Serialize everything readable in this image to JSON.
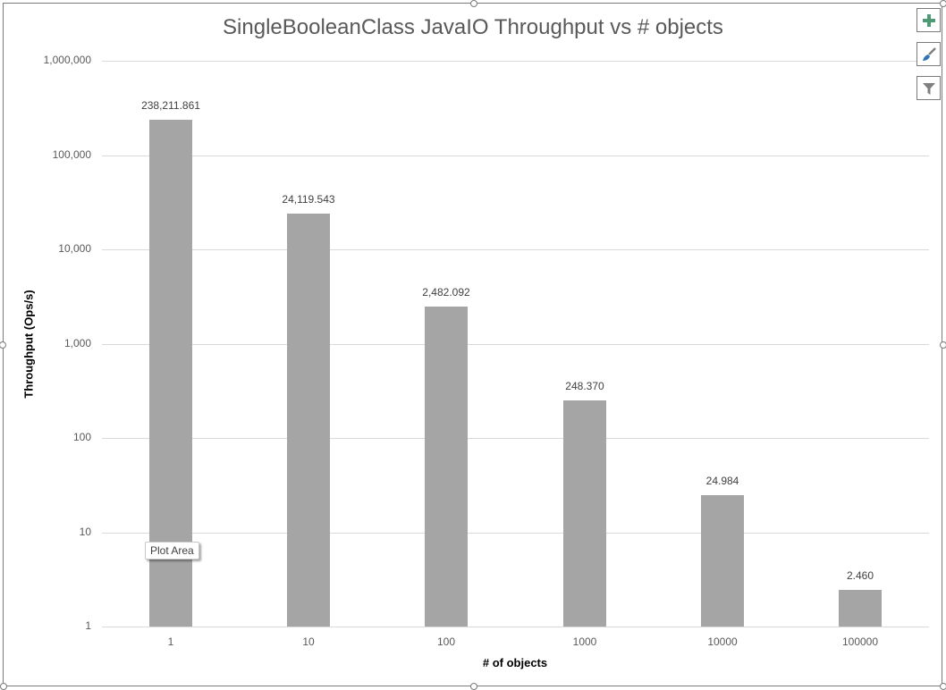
{
  "chart_data": {
    "type": "bar",
    "title": "SingleBooleanClass JavaIO Throughput vs # objects",
    "xlabel": "# of objects",
    "ylabel": "Throughput (Ops/s)",
    "yscale": "log",
    "ylim": [
      1,
      1000000
    ],
    "yticks": [
      "1",
      "10",
      "100",
      "1,000",
      "10,000",
      "100,000",
      "1,000,000"
    ],
    "categories": [
      "1",
      "10",
      "100",
      "1000",
      "10000",
      "100000"
    ],
    "values": [
      238211.861,
      24119.543,
      2482.092,
      248.37,
      24.984,
      2.46
    ],
    "data_labels": [
      "238,211.861",
      "24,119.543",
      "2,482.092",
      "248.370",
      "24.984",
      "2.460"
    ],
    "bar_color": "#a5a5a5",
    "grid": true,
    "legend": "none"
  },
  "ui": {
    "tooltip": "Plot Area",
    "side_buttons": [
      {
        "name": "chart-elements",
        "icon": "plus-icon"
      },
      {
        "name": "chart-styles",
        "icon": "paintbrush-icon"
      },
      {
        "name": "chart-filters",
        "icon": "filter-icon"
      }
    ],
    "colors": {
      "plus": "#4e9a74",
      "brush": "#2e75b6",
      "filter": "#7f7f7f"
    }
  }
}
